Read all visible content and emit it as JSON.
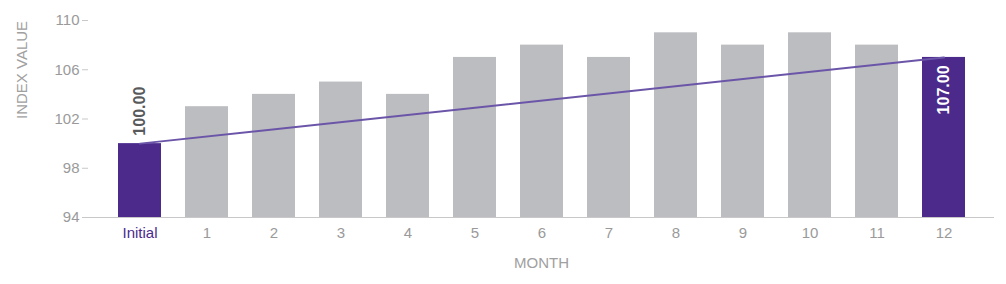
{
  "chart_data": {
    "type": "bar",
    "categories": [
      "Initial",
      "1",
      "2",
      "3",
      "4",
      "5",
      "6",
      "7",
      "8",
      "9",
      "10",
      "11",
      "12"
    ],
    "series": [
      {
        "type": "bar",
        "values": [
          100,
          103,
          104,
          105,
          104,
          107,
          108,
          107,
          109,
          108,
          109,
          108,
          107
        ],
        "value_labels": [
          "100.00",
          null,
          null,
          null,
          null,
          null,
          null,
          null,
          null,
          null,
          null,
          null,
          "107.00"
        ],
        "colors": [
          "#4b2a8c",
          "#bcbdc0",
          "#bcbdc0",
          "#bcbdc0",
          "#bcbdc0",
          "#bcbdc0",
          "#bcbdc0",
          "#bcbdc0",
          "#bcbdc0",
          "#bcbdc0",
          "#bcbdc0",
          "#bcbdc0",
          "#4b2a8c"
        ]
      },
      {
        "type": "line",
        "color": "#6b55a8",
        "values": [
          100,
          null,
          null,
          null,
          null,
          null,
          null,
          null,
          null,
          null,
          null,
          null,
          107
        ]
      }
    ],
    "data_labels": true,
    "x_label": "MONTH",
    "y_label": "INDEX VALUE",
    "ylim": [
      94,
      110
    ],
    "yticks": [
      94,
      98,
      102,
      106,
      110
    ],
    "grid": false
  }
}
